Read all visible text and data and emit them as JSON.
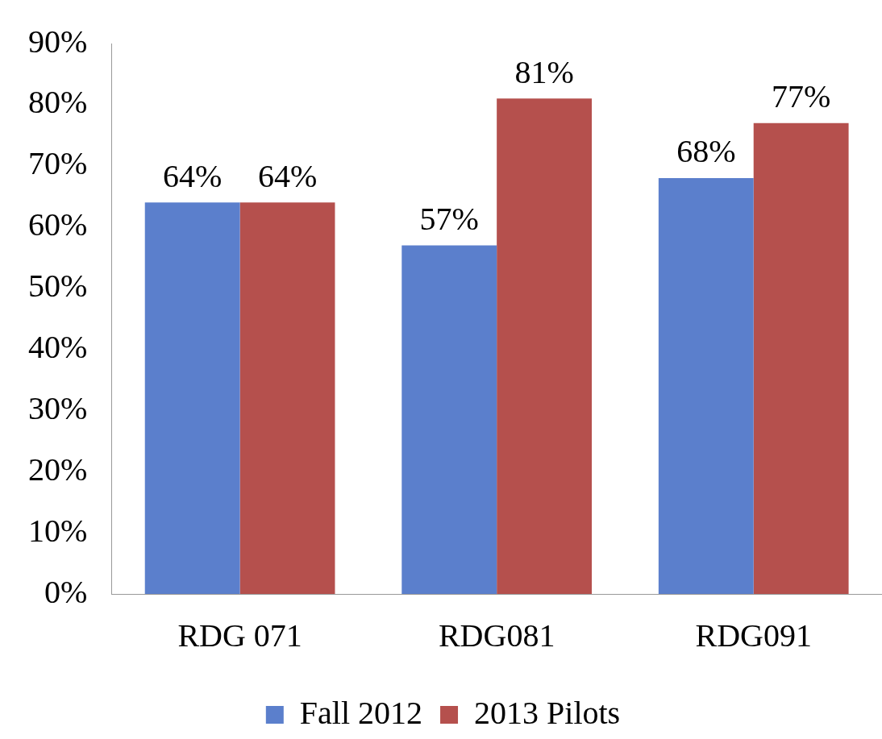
{
  "chart_data": {
    "type": "bar",
    "categories": [
      "RDG 071",
      "RDG081",
      "RDG091"
    ],
    "series": [
      {
        "name": "Fall 2012",
        "color": "#5b7fcc",
        "values": [
          64,
          57,
          68
        ],
        "value_labels": [
          "64%",
          "57%",
          "68%"
        ]
      },
      {
        "name": "2013 Pilots",
        "color": "#b5504d",
        "values": [
          64,
          81,
          77
        ],
        "value_labels": [
          "64%",
          "81%",
          "77%"
        ]
      }
    ],
    "ylim": [
      0,
      90
    ],
    "yticks": [
      {
        "value": 0,
        "label": "0%"
      },
      {
        "value": 10,
        "label": "10%"
      },
      {
        "value": 20,
        "label": "20%"
      },
      {
        "value": 30,
        "label": "30%"
      },
      {
        "value": 40,
        "label": "40%"
      },
      {
        "value": 50,
        "label": "50%"
      },
      {
        "value": 60,
        "label": "60%"
      },
      {
        "value": 70,
        "label": "70%"
      },
      {
        "value": 80,
        "label": "80%"
      },
      {
        "value": 90,
        "label": "90%"
      }
    ],
    "grid": false,
    "legend": "bottom"
  }
}
